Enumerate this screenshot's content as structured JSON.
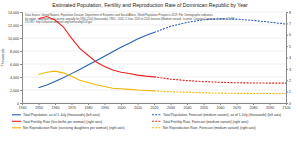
{
  "chart_data": {
    "type": "line",
    "title": "Estimated Population, Fertility and Reproduction Rate of Dominican Republic by Year",
    "annotations": [
      "Data Source: United Nations, Population Division, Department of Economic and Social Affairs, World Population Prospects 2019. File: Demographic indicators",
      "by region, subregion and country, annually for 1950-2100 (thousands), 1950 - 2020, 5-Year, 2020 to 2100 forecast (Medium variant). License: Creative Commons license CC BY",
      "3.0 IGO: http://creativecommons.org/licenses/by/3.0/igo/"
    ],
    "y_label": "Thousands",
    "xlim": [
      1940,
      2100
    ],
    "xticks": [
      1940,
      1950,
      1960,
      1970,
      1980,
      1990,
      2000,
      2010,
      2020,
      2030,
      2040,
      2050,
      2060,
      2070,
      2080,
      2090,
      2100
    ],
    "ylim": [
      0,
      14000
    ],
    "yticks": [
      0,
      {
        "value": 2000,
        "label": "2,000"
      },
      {
        "value": 4000,
        "label": "4,000"
      },
      {
        "value": 6000,
        "label": "6,000"
      },
      {
        "value": 8000,
        "label": "8,000"
      },
      {
        "value": 10000,
        "label": "10,000"
      },
      {
        "value": 12000,
        "label": "12,000"
      },
      {
        "value": 14000,
        "label": "14,000"
      }
    ],
    "y2lim": [
      0,
      8
    ],
    "y2ticks": [
      0,
      1,
      2,
      3,
      4,
      5,
      6,
      7,
      8
    ],
    "grid": true,
    "legend": "bottom",
    "series": [
      {
        "name": "Total Population, as of 1 July (thousands) (left axis)",
        "color": "#2a5db0",
        "line_style": "solid",
        "x": [
          1950,
          1955,
          1960,
          1965,
          1970,
          1975,
          1980,
          1985,
          1990,
          1995,
          2000,
          2005,
          2010,
          2015,
          2020
        ],
        "values": [
          2350,
          2760,
          3290,
          3900,
          4520,
          5170,
          5830,
          6500,
          7190,
          7890,
          8560,
          9200,
          9830,
          10400,
          10850
        ]
      },
      {
        "name": "Total Population, Forecast (medium variant), as of 1 July (thousands) (left axis)",
        "color": "#2a5db0",
        "line_style": "dashed",
        "x": [
          2020,
          2030,
          2040,
          2050,
          2060,
          2070,
          2080,
          2090,
          2100
        ],
        "values": [
          10850,
          11800,
          12400,
          12800,
          12950,
          12900,
          12700,
          12450,
          12150
        ]
      },
      {
        "name": "Total Fertility Rate (live births per woman) (right axis)",
        "color": "#e8231d",
        "line_style": "solid",
        "axis": "y2",
        "x": [
          1950,
          1955,
          1960,
          1965,
          1970,
          1975,
          1980,
          1985,
          1990,
          1995,
          2000,
          2005,
          2010,
          2015,
          2020
        ],
        "values": [
          7.4,
          7.6,
          7.3,
          6.7,
          5.7,
          4.8,
          4.2,
          3.6,
          3.2,
          2.9,
          2.7,
          2.6,
          2.45,
          2.36,
          2.3
        ]
      },
      {
        "name": "Total Fertility Rate, Forecast (medium variant) (right axis)",
        "color": "#e8231d",
        "line_style": "dashed",
        "axis": "y2",
        "x": [
          2020,
          2030,
          2040,
          2050,
          2060,
          2070,
          2080,
          2090,
          2100
        ],
        "values": [
          2.3,
          2.1,
          1.97,
          1.88,
          1.82,
          1.78,
          1.76,
          1.75,
          1.75
        ]
      },
      {
        "name": "Net Reproduction Rate (surviving daughters per woman) (right axis)",
        "color": "#f2b600",
        "line_style": "solid",
        "axis": "y2",
        "x": [
          1950,
          1955,
          1960,
          1965,
          1970,
          1975,
          1980,
          1985,
          1990,
          1995,
          2000,
          2005,
          2010,
          2015,
          2020
        ],
        "values": [
          2.5,
          2.7,
          2.8,
          2.65,
          2.35,
          2.0,
          1.8,
          1.6,
          1.45,
          1.3,
          1.25,
          1.2,
          1.14,
          1.1,
          1.07
        ]
      },
      {
        "name": "Net Reproduction Rate, Forecast (medium variant) (right axis)",
        "color": "#f2b600",
        "line_style": "dashed",
        "axis": "y2",
        "x": [
          2020,
          2030,
          2040,
          2050,
          2060,
          2070,
          2080,
          2090,
          2100
        ],
        "values": [
          1.07,
          0.99,
          0.94,
          0.9,
          0.87,
          0.85,
          0.84,
          0.83,
          0.83
        ]
      }
    ]
  }
}
